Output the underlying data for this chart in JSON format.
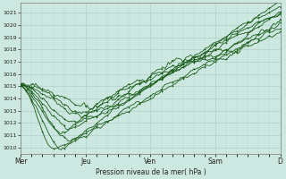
{
  "xlabel": "Pression niveau de la mer( hPa )",
  "ylim": [
    1009.5,
    1021.8
  ],
  "yticks": [
    1010,
    1011,
    1012,
    1013,
    1014,
    1015,
    1016,
    1017,
    1018,
    1019,
    1020,
    1021
  ],
  "x_day_labels": [
    "Mer",
    "Jeu",
    "Ven",
    "Sam",
    "D"
  ],
  "x_day_positions": [
    0,
    48,
    96,
    144,
    192
  ],
  "num_points": 193,
  "background_color": "#cde8e0",
  "grid_major_color": "#b0d0c8",
  "grid_minor_color": "#b8d8d0",
  "line_color": "#1a5c1a",
  "marker_color": "#1a5c1a"
}
